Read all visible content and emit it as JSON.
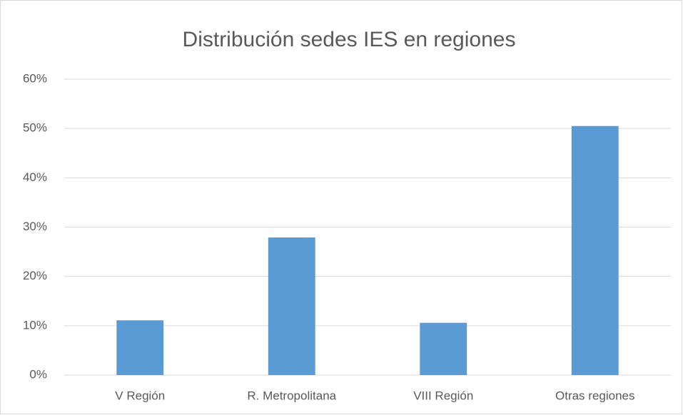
{
  "chart_data": {
    "type": "bar",
    "title": "Distribución sedes IES en regiones",
    "categories": [
      "V Región",
      "R. Metropolitana",
      "VIII Región",
      "Otras regiones"
    ],
    "values": [
      11.1,
      27.9,
      10.6,
      50.5
    ],
    "color": "#5b9bd5",
    "ylim": [
      0,
      60
    ],
    "yticks": [
      {
        "value": 0,
        "label": "0%"
      },
      {
        "value": 10,
        "label": "10%"
      },
      {
        "value": 20,
        "label": "20%"
      },
      {
        "value": 30,
        "label": "30%"
      },
      {
        "value": 40,
        "label": "40%"
      },
      {
        "value": 50,
        "label": "50%"
      },
      {
        "value": 60,
        "label": "60%"
      }
    ],
    "grid": true
  }
}
